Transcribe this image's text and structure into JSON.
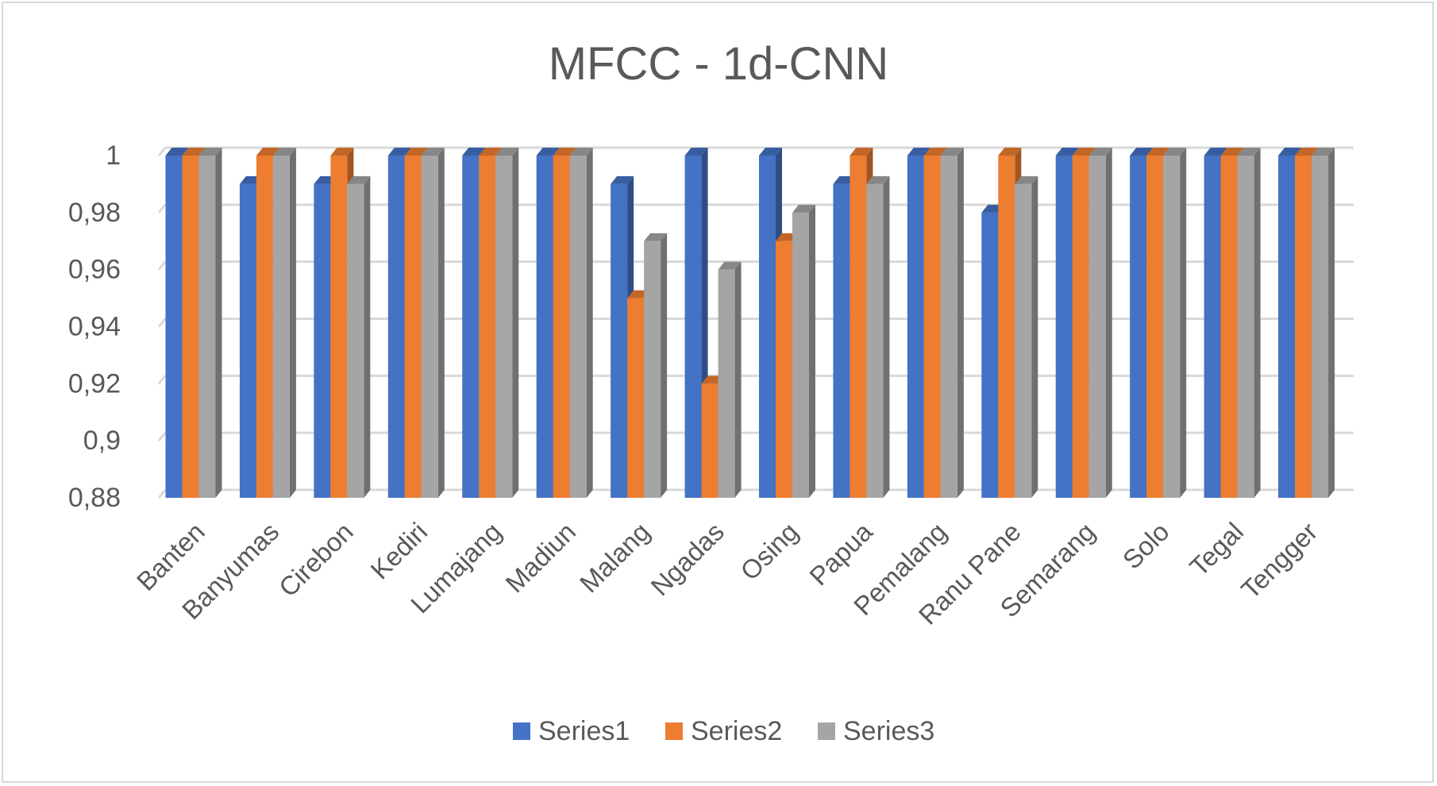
{
  "chart_data": {
    "type": "bar",
    "title": "MFCC - 1d-CNN",
    "xlabel": "",
    "ylabel": "",
    "ylim": [
      0.88,
      1.0
    ],
    "yticks": [
      0.88,
      0.9,
      0.92,
      0.94,
      0.96,
      0.98,
      1.0
    ],
    "ytick_labels": [
      "0,88",
      "0,9",
      "0,92",
      "0,94",
      "0,96",
      "0,98",
      "1"
    ],
    "grid": true,
    "legend_position": "bottom",
    "categories": [
      "Banten",
      "Banyumas",
      "Cirebon",
      "Kediri",
      "Lumajang",
      "Madiun",
      "Malang",
      "Ngadas",
      "Osing",
      "Papua",
      "Pemalang",
      "Ranu Pane",
      "Semarang",
      "Solo",
      "Tegal",
      "Tengger"
    ],
    "series": [
      {
        "name": "Series1",
        "color": "#4472c4",
        "values": [
          1,
          0.99,
          0.99,
          1,
          1,
          1,
          0.99,
          1,
          1,
          0.99,
          1,
          0.98,
          1,
          1,
          1,
          1
        ]
      },
      {
        "name": "Series2",
        "color": "#ed7d31",
        "values": [
          1,
          1,
          1,
          1,
          1,
          1,
          0.95,
          0.92,
          0.97,
          1,
          1,
          1,
          1,
          1,
          1,
          1
        ]
      },
      {
        "name": "Series3",
        "color": "#a5a5a5",
        "values": [
          1,
          1,
          0.99,
          1,
          1,
          1,
          0.97,
          0.96,
          0.98,
          0.99,
          1,
          0.99,
          1,
          1,
          1,
          1
        ]
      }
    ]
  }
}
